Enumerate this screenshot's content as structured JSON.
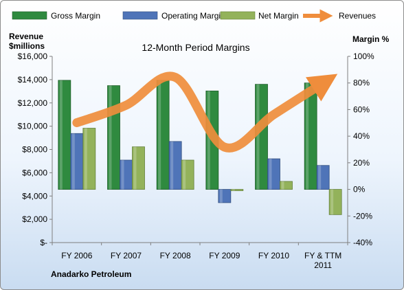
{
  "chart_data": {
    "type": "bar",
    "title": "12-Month Period Margins",
    "company": "Anadarko Petroleum",
    "left_axis_title": [
      "Revenue",
      "$millions"
    ],
    "right_axis_title": "Margin %",
    "categories": [
      [
        "FY 2006"
      ],
      [
        "FY 2007"
      ],
      [
        "FY 2008"
      ],
      [
        "FY 2009"
      ],
      [
        "FY 2010"
      ],
      [
        "FY & TTM",
        "2011"
      ]
    ],
    "left_ticks": [
      "$-",
      "$2,000",
      "$4,000",
      "$6,000",
      "$8,000",
      "$10,000",
      "$12,000",
      "$14,000",
      "$16,000"
    ],
    "right_ticks": [
      "-40%",
      "-20%",
      "0%",
      "20%",
      "40%",
      "60%",
      "80%",
      "100%"
    ],
    "ylim_left": [
      0,
      16000
    ],
    "ylim_right": [
      -40,
      100
    ],
    "series": [
      {
        "name": "Gross Margin",
        "axis": "right",
        "kind": "bar",
        "color": "#2f8a3f",
        "values": [
          82,
          78,
          82,
          74,
          79,
          80
        ]
      },
      {
        "name": "Operating Margin",
        "axis": "right",
        "kind": "bar",
        "color": "#4f74b8",
        "values": [
          42,
          22,
          36,
          -10,
          23,
          18
        ]
      },
      {
        "name": "Net Margin",
        "axis": "right",
        "kind": "bar",
        "color": "#93b25b",
        "values": [
          46,
          32,
          22,
          -1,
          6,
          -19
        ]
      },
      {
        "name": "Revenues",
        "axis": "left",
        "kind": "line",
        "color": "#ef8d3c",
        "values": [
          10300,
          11800,
          14200,
          8200,
          11000,
          13700
        ]
      }
    ]
  }
}
